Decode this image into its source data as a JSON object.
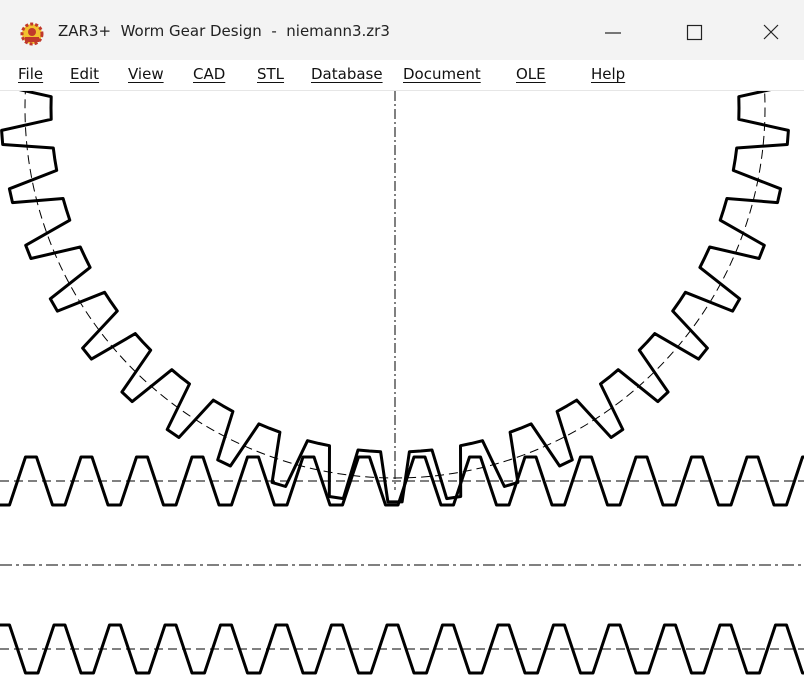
{
  "window": {
    "title": "ZAR3+  Worm Gear Design  -  niemann3.zr3"
  },
  "menu": [
    "File",
    "Edit",
    "View",
    "CAD",
    "STL",
    "Database",
    "Document",
    "OLE",
    "Help"
  ]
}
